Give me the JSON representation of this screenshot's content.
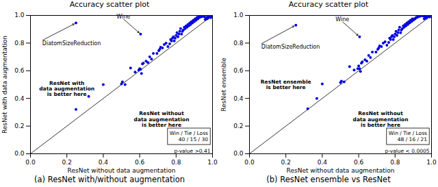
{
  "chart_data": [
    {
      "type": "scatter",
      "title": "Accuracy scatter plot",
      "xlabel": "ResNet without data augmentation",
      "ylabel": "ResNet with data augmentation",
      "caption": "(a) ResNet with/without augmentation",
      "xlim": [
        0,
        1.0
      ],
      "ylim": [
        0,
        1.0
      ],
      "xticks": [
        {
          "value": 0,
          "label": "0.0"
        },
        0.2,
        0.4,
        0.6,
        0.8,
        {
          "value": 1.0,
          "label": "1.0"
        }
      ],
      "yticks": [
        {
          "value": 0,
          "label": "0.0"
        },
        0.2,
        0.4,
        0.6,
        0.8,
        {
          "value": 1.0,
          "label": "1.0"
        }
      ],
      "series": [
        {
          "type": "scatter",
          "color": "#0000dd",
          "x": [
            0.25,
            0.32,
            0.4,
            0.5,
            0.505,
            0.52,
            0.55,
            0.575,
            0.595,
            0.6,
            0.61,
            0.605,
            0.615,
            0.62,
            0.635,
            0.645,
            0.655,
            0.665,
            0.675,
            0.695,
            0.705,
            0.71,
            0.715,
            0.725,
            0.735,
            0.745,
            0.755,
            0.765,
            0.77,
            0.775,
            0.78,
            0.785,
            0.79,
            0.795,
            0.8,
            0.805,
            0.81,
            0.815,
            0.82,
            0.825,
            0.83,
            0.835,
            0.84,
            0.845,
            0.85,
            0.855,
            0.86,
            0.865,
            0.87,
            0.875,
            0.88,
            0.885,
            0.89,
            0.895,
            0.9,
            0.905,
            0.91,
            0.915,
            0.92,
            0.925,
            0.93,
            0.935,
            0.94,
            0.945,
            0.95,
            0.955,
            0.96,
            0.965,
            0.97,
            0.975,
            0.98,
            0.985,
            0.99,
            0.995,
            1.0,
            1.0,
            0.97,
            0.975,
            0.98,
            0.985,
            0.99,
            0.995,
            1.0,
            1.0,
            0.605,
            0.25
          ],
          "values": [
            0.32,
            0.415,
            0.5,
            0.505,
            0.52,
            0.5,
            0.62,
            0.59,
            0.605,
            0.615,
            0.58,
            0.61,
            0.65,
            0.655,
            0.67,
            0.66,
            0.7,
            0.685,
            0.725,
            0.725,
            0.745,
            0.755,
            0.77,
            0.765,
            0.79,
            0.8,
            0.775,
            0.795,
            0.825,
            0.815,
            0.835,
            0.845,
            0.815,
            0.835,
            0.855,
            0.875,
            0.845,
            0.865,
            0.885,
            0.905,
            0.865,
            0.885,
            0.895,
            0.915,
            0.905,
            0.925,
            0.915,
            0.935,
            0.925,
            0.945,
            0.935,
            0.955,
            0.945,
            0.965,
            0.955,
            0.975,
            0.965,
            0.985,
            0.975,
            0.995,
            0.985,
            0.995,
            0.99,
            0.995,
            1.0,
            0.99,
            0.97,
            0.985,
            0.98,
            0.99,
            0.995,
            1.0,
            0.985,
            0.99,
            0.995,
            1.0,
            0.975,
            0.98,
            0.99,
            0.995,
            0.985,
            0.99,
            0.995,
            1.0,
            0.865,
            0.945
          ]
        },
        {
          "type": "line",
          "color": "black",
          "x": [
            0,
            1
          ],
          "values": [
            0,
            1
          ]
        }
      ],
      "annotations": [
        {
          "text": "ResNet with\ndata augmentation\nis better here",
          "x": 0.2,
          "y": 0.47
        },
        {
          "text": "ResNet without\ndata augmentation\nis better here",
          "x": 0.72,
          "y": 0.25
        },
        {
          "text": "Wine",
          "x": 0.605,
          "y": 0.865,
          "text_x": 0.51,
          "text_y": 0.975
        },
        {
          "text": "DiatomSizeReduction",
          "x": 0.25,
          "y": 0.945,
          "text_x": 0.065,
          "text_y": 0.82
        },
        {
          "text": "Win / Tie / Loss\n40 / 15 / 30",
          "box": true
        },
        {
          "text": "p-value >0.41"
        }
      ]
    },
    {
      "type": "scatter",
      "title": "Accuracy scatter plot",
      "xlabel": "ResNet without data augmentation",
      "ylabel": "ResNet ensemble",
      "caption": "(b) ResNet ensemble vs ResNet",
      "xlim": [
        0,
        1.0
      ],
      "ylim": [
        0,
        1.0
      ],
      "xticks": [
        {
          "value": 0,
          "label": "0.0"
        },
        0.2,
        0.4,
        0.6,
        0.8,
        {
          "value": 1.0,
          "label": "1.0"
        }
      ],
      "yticks": [
        {
          "value": 0,
          "label": "0.0"
        },
        0.2,
        0.4,
        0.6,
        0.8,
        {
          "value": 1.0,
          "label": "1.0"
        }
      ],
      "series": [
        {
          "type": "scatter",
          "color": "#0000dd",
          "x": [
            0.32,
            0.37,
            0.4,
            0.5,
            0.505,
            0.52,
            0.55,
            0.575,
            0.595,
            0.6,
            0.61,
            0.605,
            0.615,
            0.62,
            0.635,
            0.645,
            0.655,
            0.665,
            0.675,
            0.695,
            0.705,
            0.71,
            0.715,
            0.725,
            0.735,
            0.745,
            0.755,
            0.765,
            0.77,
            0.775,
            0.78,
            0.785,
            0.79,
            0.795,
            0.8,
            0.805,
            0.81,
            0.815,
            0.82,
            0.825,
            0.83,
            0.835,
            0.84,
            0.845,
            0.85,
            0.855,
            0.86,
            0.865,
            0.87,
            0.875,
            0.88,
            0.885,
            0.89,
            0.895,
            0.9,
            0.905,
            0.91,
            0.915,
            0.92,
            0.925,
            0.93,
            0.935,
            0.94,
            0.945,
            0.95,
            0.955,
            0.96,
            0.965,
            0.97,
            0.975,
            0.98,
            0.985,
            0.99,
            0.995,
            1.0,
            1.0,
            0.97,
            0.975,
            0.98,
            0.985,
            0.99,
            0.995,
            1.0,
            1.0,
            0.605,
            0.255
          ],
          "values": [
            0.325,
            0.4,
            0.505,
            0.515,
            0.525,
            0.52,
            0.63,
            0.605,
            0.615,
            0.635,
            0.595,
            0.615,
            0.655,
            0.665,
            0.68,
            0.67,
            0.71,
            0.695,
            0.735,
            0.735,
            0.755,
            0.765,
            0.78,
            0.775,
            0.8,
            0.81,
            0.785,
            0.805,
            0.835,
            0.825,
            0.845,
            0.855,
            0.825,
            0.845,
            0.865,
            0.885,
            0.855,
            0.875,
            0.895,
            0.915,
            0.875,
            0.895,
            0.905,
            0.925,
            0.915,
            0.935,
            0.925,
            0.945,
            0.935,
            0.955,
            0.945,
            0.965,
            0.955,
            0.975,
            0.965,
            0.975,
            0.975,
            0.985,
            0.985,
            0.995,
            0.99,
            1.0,
            0.995,
            1.0,
            1.0,
            0.995,
            0.975,
            0.99,
            0.985,
            0.995,
            0.995,
            1.0,
            0.99,
            0.995,
            1.0,
            1.0,
            0.98,
            0.985,
            0.995,
            1.0,
            0.99,
            0.995,
            1.0,
            1.0,
            0.845,
            0.93
          ]
        },
        {
          "type": "line",
          "color": "black",
          "x": [
            0,
            1
          ],
          "values": [
            0,
            1
          ]
        }
      ],
      "annotations": [
        {
          "text": "ResNet ensemble\nis better here",
          "x": 0.2,
          "y": 0.5
        },
        {
          "text": "ResNet without\ndata augmentation\nis better here",
          "x": 0.72,
          "y": 0.25
        },
        {
          "text": "Wine",
          "x": 0.605,
          "y": 0.845,
          "text_x": 0.51,
          "text_y": 0.955
        },
        {
          "text": "DiatomSizeReduction",
          "x": 0.255,
          "y": 0.93,
          "text_x": 0.065,
          "text_y": 0.795
        },
        {
          "text": "Win / Tie / Loss\n48 / 16 / 21",
          "box": true
        },
        {
          "text": "p-value < 0.0005"
        }
      ]
    }
  ]
}
